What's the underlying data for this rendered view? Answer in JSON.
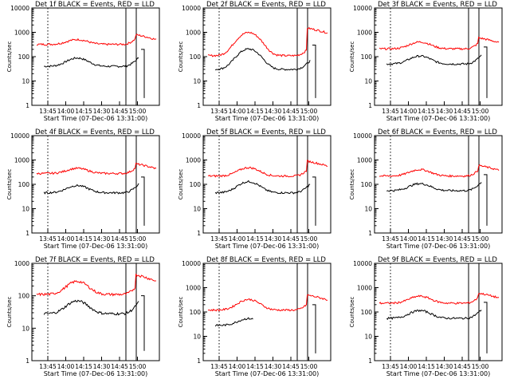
{
  "colors": {
    "events": "#000000",
    "lld": "#ff0000",
    "background": "#ffffff"
  },
  "chart_data": [
    {
      "type": "line",
      "title": "Det 1f BLACK = Events, RED = LLD",
      "xlabel": "Start Time (07-Dec-06 13:31:00)",
      "ylabel": "Counts/sec",
      "y_scale": "log",
      "ylim": [
        1,
        10000
      ],
      "x_ticks": [
        "13:45",
        "14:00",
        "14:15",
        "14:30",
        "14:45",
        "15:00"
      ],
      "y_ticks": [
        "1",
        "10",
        "100",
        "1000",
        "10000"
      ],
      "series": [
        {
          "name": "Events",
          "color": "#000000",
          "base": 40,
          "bump": 100,
          "gap": false,
          "tail": 200
        },
        {
          "name": "LLD",
          "color": "#ff0000",
          "base": 320,
          "bump": 550,
          "peak": 800
        }
      ]
    },
    {
      "type": "line",
      "title": "Det 2f BLACK = Events, RED = LLD",
      "xlabel": "Start Time (07-Dec-06 13:31:00)",
      "ylabel": "Counts/sec",
      "y_scale": "log",
      "ylim": [
        1,
        10000
      ],
      "x_ticks": [
        "13:45",
        "14:00",
        "14:15",
        "14:30",
        "14:45",
        "15:00"
      ],
      "y_ticks": [
        "1",
        "10",
        "100",
        "1000",
        "10000"
      ],
      "series": [
        {
          "name": "Events",
          "color": "#000000",
          "base": 30,
          "bump": 250,
          "gap": false,
          "tail": 300
        },
        {
          "name": "LLD",
          "color": "#ff0000",
          "base": 110,
          "bump": 1200,
          "peak": 1500
        }
      ]
    },
    {
      "type": "line",
      "title": "Det 3f BLACK = Events, RED = LLD",
      "xlabel": "Start Time (07-Dec-06 13:31:00)",
      "ylabel": "Counts/sec",
      "y_scale": "log",
      "ylim": [
        1,
        10000
      ],
      "x_ticks": [
        "13:45",
        "14:00",
        "14:15",
        "14:30",
        "14:45",
        "15:00"
      ],
      "y_ticks": [
        "1",
        "10",
        "100",
        "1000",
        "10000"
      ],
      "series": [
        {
          "name": "Events",
          "color": "#000000",
          "base": 50,
          "bump": 120,
          "gap": false,
          "tail": 250
        },
        {
          "name": "LLD",
          "color": "#ff0000",
          "base": 210,
          "bump": 450,
          "peak": 600
        }
      ]
    },
    {
      "type": "line",
      "title": "Det 4f BLACK = Events, RED = LLD",
      "xlabel": "Start Time (07-Dec-06 13:31:00)",
      "ylabel": "Counts/sec",
      "y_scale": "log",
      "ylim": [
        1,
        10000
      ],
      "x_ticks": [
        "13:45",
        "14:00",
        "14:15",
        "14:30",
        "14:45",
        "15:00"
      ],
      "y_ticks": [
        "1",
        "10",
        "100",
        "1000",
        "10000"
      ],
      "series": [
        {
          "name": "Events",
          "color": "#000000",
          "base": 45,
          "bump": 100,
          "gap": false,
          "tail": 200
        },
        {
          "name": "LLD",
          "color": "#ff0000",
          "base": 280,
          "bump": 500,
          "peak": 700
        }
      ]
    },
    {
      "type": "line",
      "title": "Det 5f BLACK = Events, RED = LLD",
      "xlabel": "Start Time (07-Dec-06 13:31:00)",
      "ylabel": "Counts/sec",
      "y_scale": "log",
      "ylim": [
        1,
        10000
      ],
      "x_ticks": [
        "13:45",
        "14:00",
        "14:15",
        "14:30",
        "14:45",
        "15:00"
      ],
      "y_ticks": [
        "1",
        "10",
        "100",
        "1000",
        "10000"
      ],
      "series": [
        {
          "name": "Events",
          "color": "#000000",
          "base": 45,
          "bump": 150,
          "gap": false,
          "tail": 200
        },
        {
          "name": "LLD",
          "color": "#ff0000",
          "base": 220,
          "bump": 550,
          "peak": 900
        }
      ]
    },
    {
      "type": "line",
      "title": "Det 6f BLACK = Events, RED = LLD",
      "xlabel": "Start Time (07-Dec-06 13:31:00)",
      "ylabel": "Counts/sec",
      "y_scale": "log",
      "ylim": [
        1,
        10000
      ],
      "x_ticks": [
        "13:45",
        "14:00",
        "14:15",
        "14:30",
        "14:45",
        "15:00"
      ],
      "y_ticks": [
        "1",
        "10",
        "100",
        "1000",
        "10000"
      ],
      "series": [
        {
          "name": "Events",
          "color": "#000000",
          "base": 55,
          "bump": 120,
          "gap": false,
          "tail": 250
        },
        {
          "name": "LLD",
          "color": "#ff0000",
          "base": 220,
          "bump": 450,
          "peak": 600
        }
      ]
    },
    {
      "type": "line",
      "title": "Det 7f BLACK = Events, RED = LLD",
      "xlabel": "Start Time (07-Dec-06 13:31:00)",
      "ylabel": "Counts/sec",
      "y_scale": "log",
      "ylim": [
        1,
        1000
      ],
      "x_ticks": [
        "13:45",
        "14:00",
        "14:15",
        "14:30",
        "14:45",
        "15:00"
      ],
      "y_ticks": [
        "1",
        "10",
        "100",
        "1000"
      ],
      "series": [
        {
          "name": "Events",
          "color": "#000000",
          "base": 28,
          "bump": 80,
          "gap": false,
          "tail": 100
        },
        {
          "name": "LLD",
          "color": "#ff0000",
          "base": 110,
          "bump": 320,
          "peak": 450
        }
      ]
    },
    {
      "type": "line",
      "title": "Det 8f BLACK = Events, RED = LLD",
      "xlabel": "Start Time (07-Dec-06 13:31:00)",
      "ylabel": "Counts/sec",
      "y_scale": "log",
      "ylim": [
        1,
        10000
      ],
      "x_ticks": [
        "13:45",
        "14:00",
        "14:15",
        "14:30",
        "14:45",
        "15:00"
      ],
      "y_ticks": [
        "1",
        "10",
        "100",
        "1000",
        "10000"
      ],
      "series": [
        {
          "name": "Events",
          "color": "#000000",
          "base": 28,
          "bump": 60,
          "gap": true,
          "tail": 200
        },
        {
          "name": "LLD",
          "color": "#ff0000",
          "base": 120,
          "bump": 380,
          "peak": 500
        }
      ]
    },
    {
      "type": "line",
      "title": "Det 9f BLACK = Events, RED = LLD",
      "xlabel": "Start Time (07-Dec-06 13:31:00)",
      "ylabel": "Counts/sec",
      "y_scale": "log",
      "ylim": [
        1,
        10000
      ],
      "x_ticks": [
        "13:45",
        "14:00",
        "14:15",
        "14:30",
        "14:45",
        "15:00"
      ],
      "y_ticks": [
        "1",
        "10",
        "100",
        "1000",
        "10000"
      ],
      "series": [
        {
          "name": "Events",
          "color": "#000000",
          "base": 55,
          "bump": 130,
          "gap": false,
          "tail": 250
        },
        {
          "name": "LLD",
          "color": "#ff0000",
          "base": 230,
          "bump": 500,
          "peak": 600
        }
      ]
    }
  ]
}
